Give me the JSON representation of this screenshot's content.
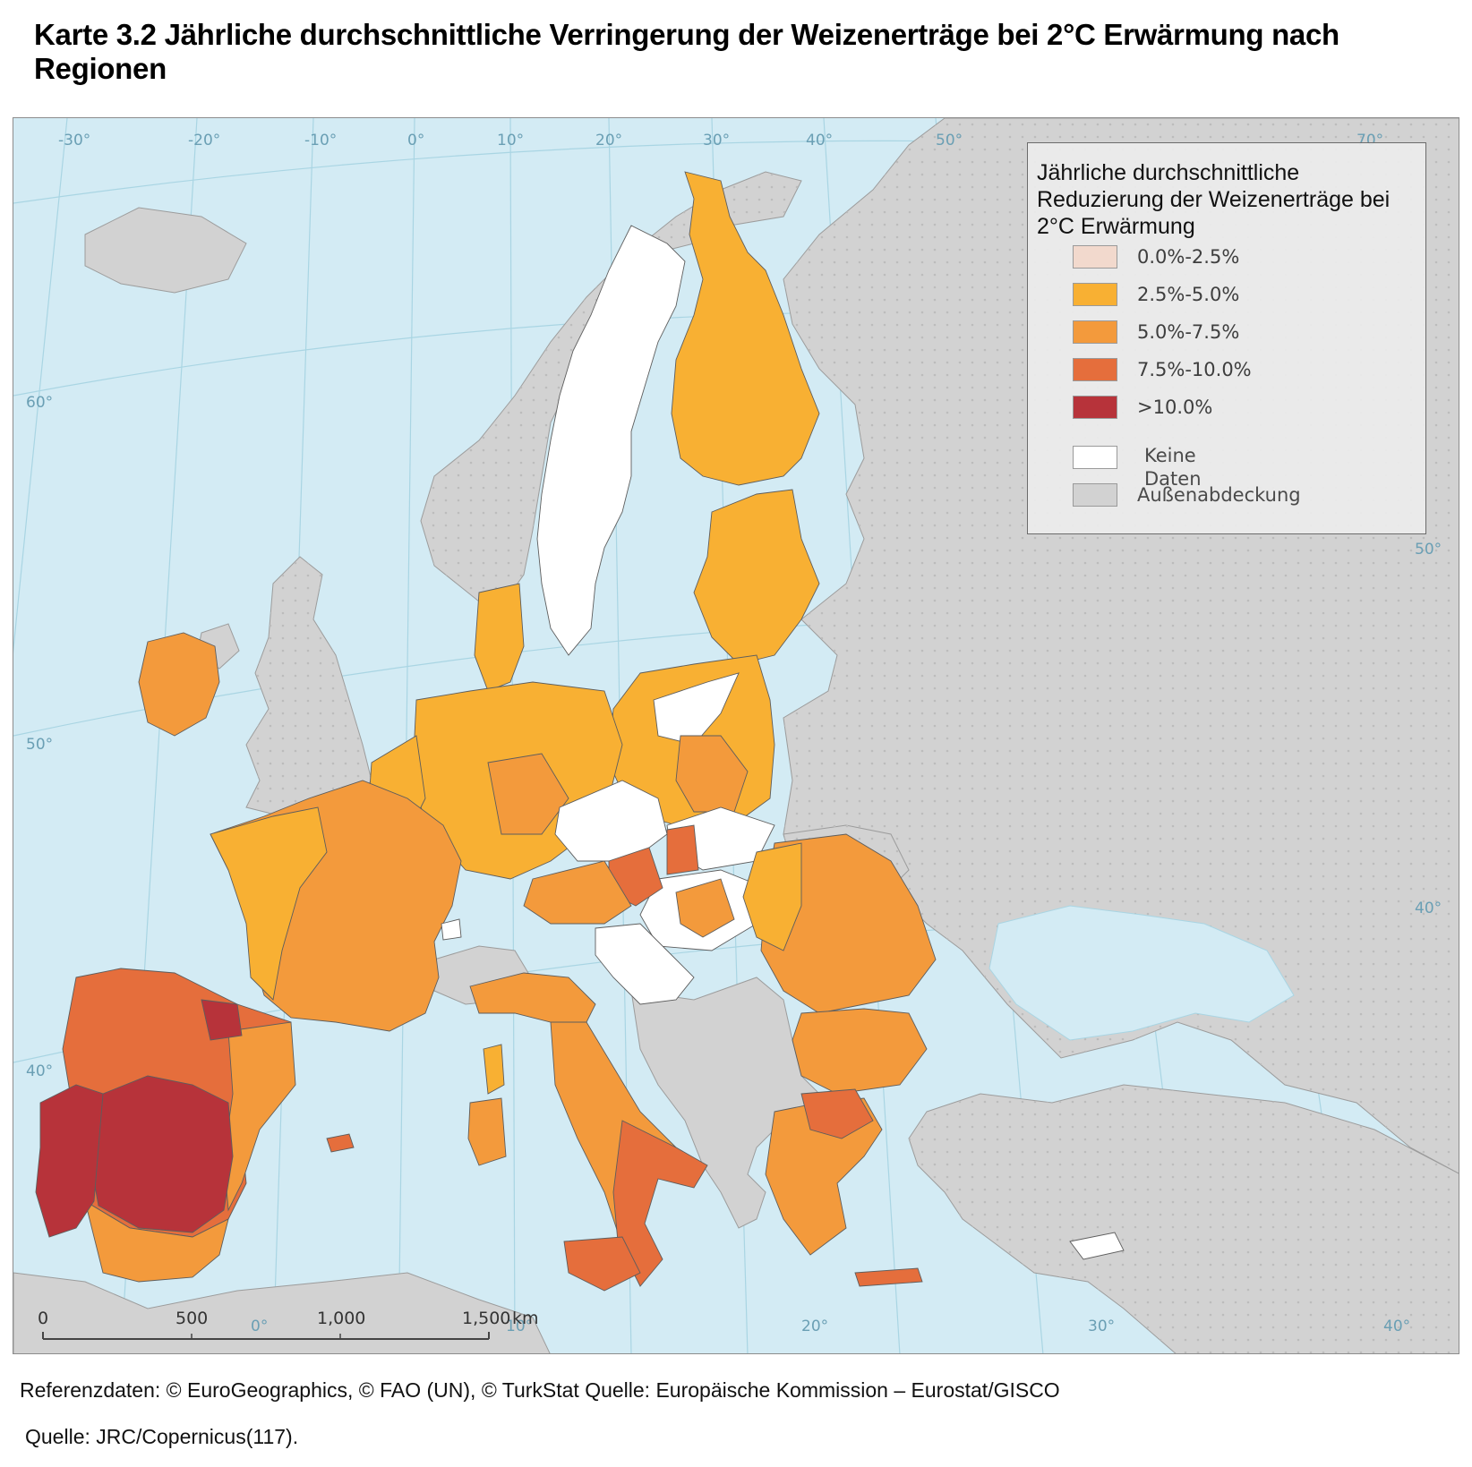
{
  "title": "Karte 3.2 Jährliche durchschnittliche Verringerung der Weizenerträge bei 2°C Erwärmung nach Regionen",
  "legend": {
    "title": "Jährliche durchschnittliche Reduzierung der Weizenerträge bei 2°C Erwärmung",
    "classes": [
      {
        "label": "0.0%-2.5%",
        "color": "#f2d9cd"
      },
      {
        "label": "2.5%-5.0%",
        "color": "#f8b033"
      },
      {
        "label": "5.0%-7.5%",
        "color": "#f39a3c"
      },
      {
        "label": "7.5%-10.0%",
        "color": "#e56e3c"
      },
      {
        "label": ">10.0%",
        "color": "#b7333a"
      }
    ],
    "no_data": {
      "label": "Keine Daten",
      "color": "#ffffff"
    },
    "outside": {
      "label": "Außenabdeckung",
      "color": "#d2d2d2"
    }
  },
  "graticule": {
    "top": [
      "-30°",
      "-20°",
      "-10°",
      "0°",
      "10°",
      "20°",
      "30°",
      "40°",
      "50°",
      "70°"
    ],
    "left": [
      "60°",
      "50°",
      "40°"
    ],
    "right": [
      "50°",
      "40°"
    ],
    "bottom": [
      "0°",
      "10°",
      "20°",
      "30°",
      "40°"
    ]
  },
  "scalebar": {
    "ticks": [
      "0",
      "500",
      "1,000",
      "1,500"
    ],
    "unit": "km"
  },
  "colors": {
    "sea": "#d3ebf4",
    "land_outside": "#d2d2d2",
    "border": "#6a6a6a"
  },
  "footer": {
    "references": "Referenzdaten: © EuroGeographics, © FAO (UN), © TurkStat Quelle: Europäische Kommission – Eurostat/GISCO",
    "source": "Quelle: JRC/Copernicus(117)."
  }
}
